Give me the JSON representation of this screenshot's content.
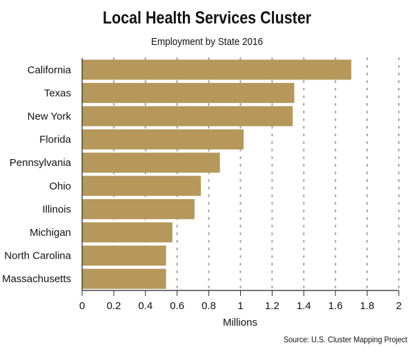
{
  "chart_data": {
    "type": "bar",
    "orientation": "horizontal",
    "title": "Local Health Services Cluster",
    "subtitle": "Employment by State 2016",
    "xlabel": "Millions",
    "ylabel": "",
    "source": "Source: U.S. Cluster Mapping Project",
    "categories": [
      "California",
      "Texas",
      "New York",
      "Florida",
      "Pennsylvania",
      "Ohio",
      "Illinois",
      "Michigan",
      "North Carolina",
      "Massachusetts"
    ],
    "values": [
      1.7,
      1.34,
      1.33,
      1.02,
      0.87,
      0.75,
      0.71,
      0.57,
      0.53,
      0.53
    ],
    "xlim": [
      0,
      2
    ],
    "xticks": [
      "0",
      "0.2",
      "0.4",
      "0.6",
      "0.8",
      "1",
      "1.2",
      "1.4",
      "1.6",
      "1.8",
      "2"
    ],
    "grid": "vertical dotted",
    "legend": "none",
    "colors": {
      "bar": "#b5985a",
      "grid": "#a8a8a8",
      "axis": "#222222"
    }
  }
}
